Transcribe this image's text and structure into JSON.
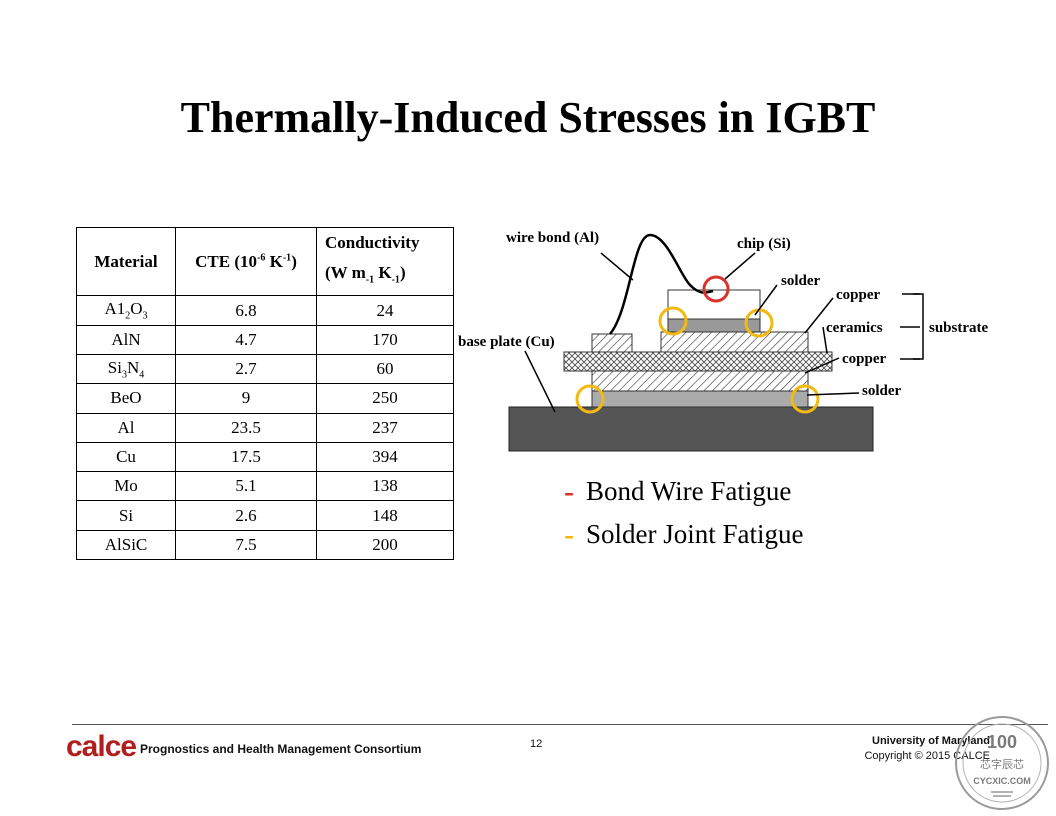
{
  "slide": {
    "title": "Thermally-Induced Stresses in IGBT",
    "page_number": "12"
  },
  "table": {
    "headers": {
      "material": "Material",
      "cte_prefix": "CTE (10",
      "cte_exp1": "-6",
      "cte_mid": " K",
      "cte_exp2": "-1",
      "cte_suffix": ")",
      "cond_line1": "Conductivity",
      "cond_prefix": "(W m",
      "cond_sub1": "-1",
      "cond_mid": " K",
      "cond_sub2": "-1",
      "cond_suffix": ")"
    },
    "rows": [
      {
        "material_parts": [
          "A1",
          "2",
          "O",
          "3"
        ],
        "cte": "6.8",
        "conductivity": "24"
      },
      {
        "material": "AlN",
        "cte": "4.7",
        "conductivity": "170"
      },
      {
        "material_parts": [
          "Si",
          "3",
          "N",
          "4"
        ],
        "cte": "2.7",
        "conductivity": "60"
      },
      {
        "material": "BeO",
        "cte": "9",
        "conductivity": "250"
      },
      {
        "material": "Al",
        "cte": "23.5",
        "conductivity": "237"
      },
      {
        "material": "Cu",
        "cte": "17.5",
        "conductivity": "394"
      },
      {
        "material": "Mo",
        "cte": "5.1",
        "conductivity": "138"
      },
      {
        "material": "Si",
        "cte": "2.6",
        "conductivity": "148"
      },
      {
        "material": "AlSiC",
        "cte": "7.5",
        "conductivity": "200"
      }
    ]
  },
  "diagram": {
    "labels": {
      "wire_bond": "wire bond (Al)",
      "chip": "chip (Si)",
      "solder_top": "solder",
      "copper_top": "copper",
      "ceramics": "ceramics",
      "substrate": "substrate",
      "copper_bottom": "copper",
      "solder_bottom": "solder",
      "base_plate": "base plate (Cu)"
    },
    "colors": {
      "bond_wire_highlight": "#d9342b",
      "solder_highlight": "#f2b90f",
      "base_plate": "#555555"
    }
  },
  "bullets": [
    {
      "dash": "-",
      "text": "Bond Wire Fatigue",
      "dash_color": "#d9342b"
    },
    {
      "dash": "-",
      "text": "Solder Joint Fatigue",
      "dash_color": "#f2b90f"
    }
  ],
  "footer": {
    "logo": "calce",
    "consortium": "Prognostics and Health Management Consortium",
    "university": "University of Maryland",
    "copyright": "Copyright © 2015 CALCE",
    "stamp_top": "100",
    "stamp_middle": "芯字辰芯",
    "stamp_bottom": "CYCXIC.COM"
  }
}
